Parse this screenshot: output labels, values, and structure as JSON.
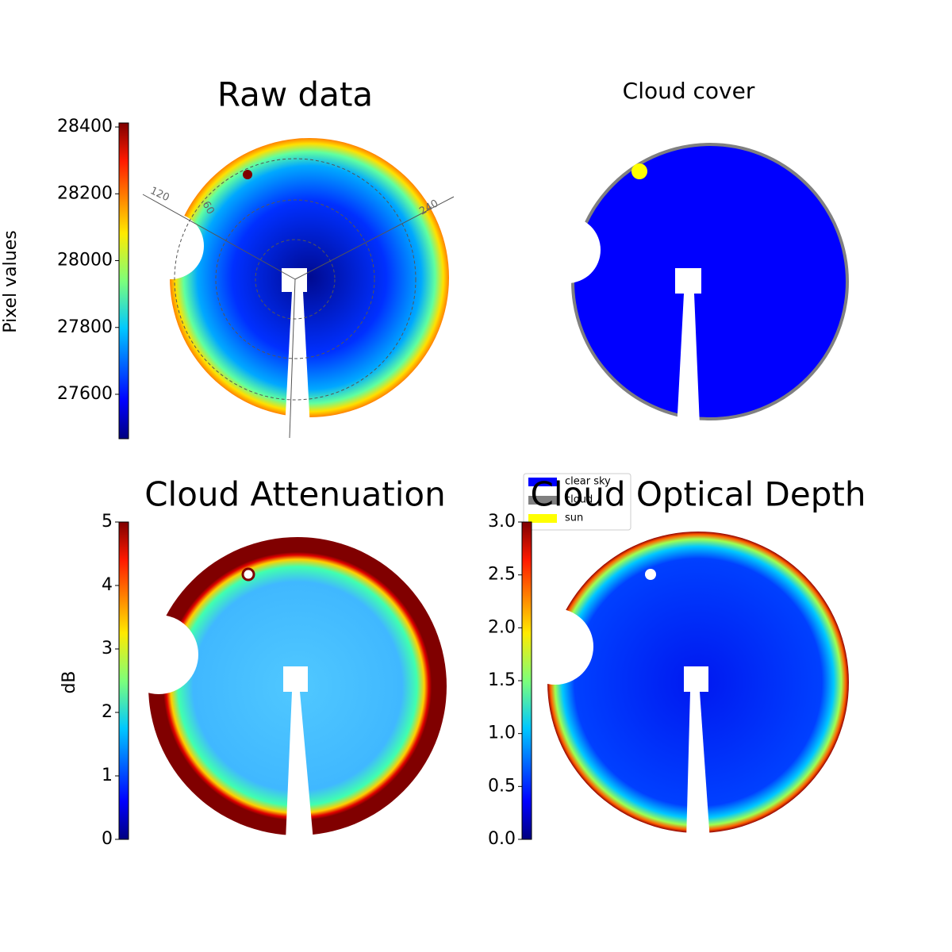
{
  "chart_data": [
    {
      "type": "image",
      "title": "Raw data",
      "colorbar": true,
      "ylabel": "Pixel values",
      "ylim": [
        27467,
        28412
      ],
      "yticks": [
        27600,
        27800,
        28000,
        28200,
        28400
      ],
      "annotations": [
        "120",
        "60",
        "240"
      ]
    },
    {
      "type": "image",
      "title": "Cloud cover",
      "series": [
        {
          "name": "clear sky",
          "color": "#0000ff"
        },
        {
          "name": "cloud",
          "color": "#808080"
        },
        {
          "name": "sun",
          "color": "#ffff00"
        }
      ]
    },
    {
      "type": "image",
      "title": "Cloud Attenuation",
      "colorbar": true,
      "ylabel": "dB",
      "ylim": [
        0,
        5
      ],
      "yticks": [
        0,
        1,
        2,
        3,
        4,
        5
      ]
    },
    {
      "type": "image",
      "title": "Cloud Optical Depth",
      "colorbar": true,
      "ylim": [
        0,
        3
      ],
      "yticks": [
        {
          "value": 0,
          "label": "0.0"
        },
        0.5,
        {
          "value": 1,
          "label": "1.0"
        },
        1.5,
        {
          "value": 2,
          "label": "2.0"
        },
        2.5,
        {
          "value": 3,
          "label": "3.0"
        }
      ]
    }
  ]
}
